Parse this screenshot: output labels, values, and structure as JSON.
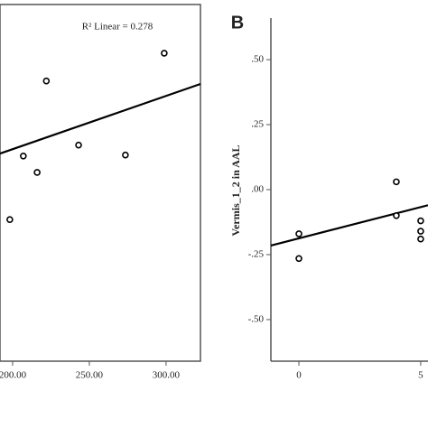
{
  "chart_data": [
    {
      "type": "scatter",
      "annotation": "R² Linear = 0.278",
      "x": [
        198.2,
        207,
        216,
        222,
        243,
        273.5,
        298.8
      ],
      "values": [
        2.85,
        4.13,
        3.8,
        5.64,
        4.35,
        4.15,
        6.2
      ],
      "fit_line": {
        "x": [
          191.8,
          322.4
        ],
        "y": [
          4.18,
          5.58
        ]
      },
      "xlim": [
        191.8,
        322.4
      ],
      "ylim": [
        0,
        7.18
      ],
      "xticks": [
        {
          "value": 200,
          "label": "200.00"
        },
        {
          "value": 250,
          "label": "250.00"
        },
        {
          "value": 300,
          "label": "300.00"
        }
      ],
      "color": "#000000"
    },
    {
      "type": "scatter",
      "panel_label": "B",
      "y_label": "Vermis_1_2 in AAL",
      "x": [
        0,
        0,
        4,
        4,
        5,
        5,
        5
      ],
      "values": [
        -0.17,
        -0.265,
        0.03,
        -0.1,
        -0.12,
        -0.16,
        -0.19
      ],
      "fit_line": {
        "x": [
          -1.15,
          5.3
        ],
        "y": [
          -0.215,
          -0.06
        ]
      },
      "xlim": [
        -1.15,
        5.3
      ],
      "ylim": [
        -0.66,
        0.66
      ],
      "xticks": [
        0,
        5
      ],
      "yticks": [
        {
          "value": 0.5,
          "label": ".50"
        },
        {
          "value": 0.25,
          "label": ".25"
        },
        {
          "value": 0,
          "label": ".00"
        },
        {
          "value": -0.25,
          "label": "-.25"
        },
        {
          "value": -0.5,
          "label": "-.50"
        }
      ],
      "color": "#000000"
    }
  ]
}
